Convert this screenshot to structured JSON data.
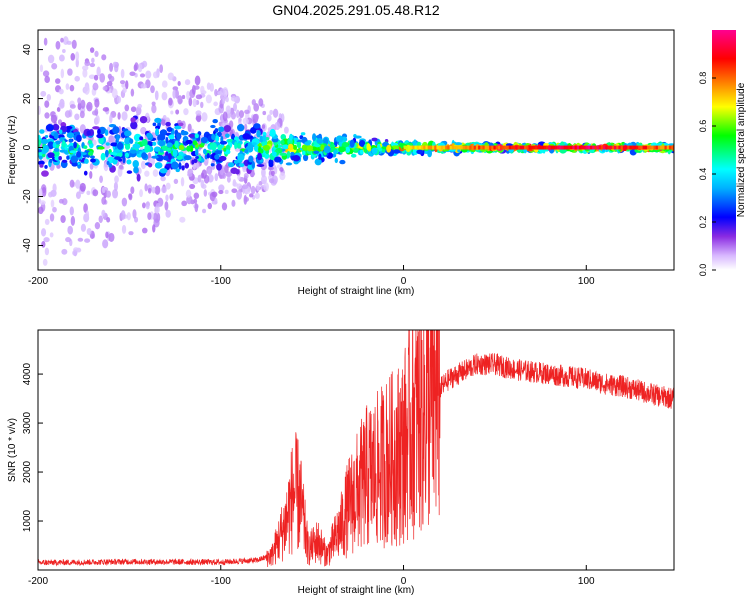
{
  "title": "GN04.2025.291.05.48.R12",
  "chart_data": [
    {
      "type": "heatmap",
      "xlabel": "Height of straight line (km)",
      "ylabel": "Frequency (Hz)",
      "xlim": [
        -200,
        148
      ],
      "ylim": [
        -50,
        48
      ],
      "xticks": [
        -200,
        -100,
        0,
        100
      ],
      "yticks": [
        -40,
        -20,
        0,
        20,
        40
      ],
      "colorbar": {
        "label": "Normalized spectral amplitude",
        "range": [
          0,
          1
        ],
        "ticks": [
          "0.0",
          "0.2",
          "0.4",
          "0.6",
          "0.8"
        ],
        "colors": [
          "#ffffff",
          "#8a2be2",
          "#0000ff",
          "#00ffff",
          "#00ff00",
          "#ffff00",
          "#ff8000",
          "#ff0000",
          "#ff0090"
        ]
      },
      "description_points": [
        {
          "height_km": -200,
          "freq_spread_hz": 48,
          "peak_amplitude": 0.3
        },
        {
          "height_km": -80,
          "freq_spread_hz": 20,
          "peak_amplitude": 0.35
        },
        {
          "height_km": -60,
          "freq_spread_hz": 10,
          "peak_amplitude": 0.55
        },
        {
          "height_km": -40,
          "freq_spread_hz": 8,
          "peak_amplitude": 0.5
        },
        {
          "height_km": -20,
          "freq_spread_hz": 4,
          "peak_amplitude": 0.6
        },
        {
          "height_km": 0,
          "freq_spread_hz": 3,
          "peak_amplitude": 0.75
        },
        {
          "height_km": 50,
          "freq_spread_hz": 2,
          "peak_amplitude": 0.9
        },
        {
          "height_km": 100,
          "freq_spread_hz": 2,
          "peak_amplitude": 1.0
        },
        {
          "height_km": 148,
          "freq_spread_hz": 2,
          "peak_amplitude": 0.85
        }
      ]
    },
    {
      "type": "line",
      "xlabel": "Height of straight line (km)",
      "ylabel": "SNR (10 * v/v)",
      "xlim": [
        -200,
        148
      ],
      "ylim": [
        0,
        4900
      ],
      "xticks": [
        -200,
        -100,
        0,
        100
      ],
      "yticks": [
        1000,
        2000,
        3000,
        4000
      ],
      "color": "#ee2222",
      "series": [
        {
          "name": "SNR envelope",
          "x": [
            -200,
            -150,
            -100,
            -80,
            -72,
            -65,
            -60,
            -57,
            -52,
            -47,
            -42,
            -38,
            -34,
            -30,
            -25,
            -20,
            -15,
            -10,
            -5,
            0,
            5,
            10,
            15,
            20,
            25,
            30,
            40,
            50,
            60,
            70,
            80,
            90,
            100,
            110,
            120,
            130,
            140,
            148
          ],
          "y": [
            150,
            170,
            160,
            200,
            300,
            900,
            1600,
            1500,
            400,
            600,
            300,
            600,
            900,
            1300,
            1600,
            1900,
            2000,
            2200,
            2300,
            2500,
            3000,
            3300,
            3500,
            3700,
            3900,
            4000,
            4200,
            4200,
            4100,
            4050,
            4000,
            3950,
            3900,
            3800,
            3750,
            3650,
            3550,
            3500
          ]
        }
      ]
    }
  ]
}
